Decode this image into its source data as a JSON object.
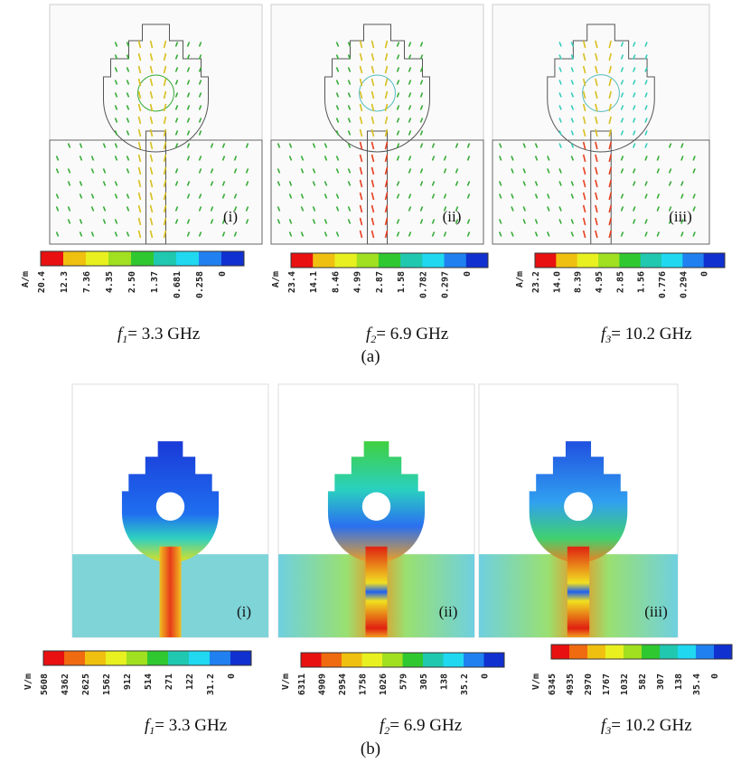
{
  "figure_a": {
    "caption": "(a)",
    "panels": [
      {
        "label": "(i)",
        "unit": "A/m",
        "ticks": [
          "20.4",
          "12.3",
          "7.36",
          "4.35",
          "2.50",
          "1.37",
          "0.681",
          "0.258",
          "0"
        ],
        "caption_var": "f",
        "caption_sub": "1",
        "caption_rest": "= 3.3 GHz"
      },
      {
        "label": "(ii)",
        "unit": "A/m",
        "ticks": [
          "23.4",
          "14.1",
          "8.46",
          "4.99",
          "2.87",
          "1.58",
          "0.782",
          "0.297",
          "0"
        ],
        "caption_var": "f",
        "caption_sub": "2",
        "caption_rest": "= 6.9 GHz"
      },
      {
        "label": "(iii)",
        "unit": "A/m",
        "ticks": [
          "23.2",
          "14.0",
          "8.39",
          "4.95",
          "2.85",
          "1.56",
          "0.776",
          "0.294",
          "0"
        ],
        "caption_var": "f",
        "caption_sub": "3",
        "caption_rest": "= 10.2 GHz"
      }
    ]
  },
  "figure_b": {
    "caption": "(b)",
    "panels": [
      {
        "label": "(i)",
        "unit": "V/m",
        "ticks": [
          "5608",
          "4362",
          "2625",
          "1562",
          "912",
          "514",
          "271",
          "122",
          "31.2",
          "0"
        ],
        "caption_var": "f",
        "caption_sub": "1",
        "caption_rest": "= 3.3 GHz"
      },
      {
        "label": "(ii)",
        "unit": "V/m",
        "ticks": [
          "6311",
          "4909",
          "2954",
          "1758",
          "1026",
          "579",
          "305",
          "138",
          "35.2",
          "0"
        ],
        "caption_var": "f",
        "caption_sub": "2",
        "caption_rest": "= 6.9 GHz"
      },
      {
        "label": "(iii)",
        "unit": "V/m",
        "ticks": [
          "6345",
          "4935",
          "2970",
          "1767",
          "1032",
          "582",
          "307",
          "138",
          "35.4",
          "0"
        ],
        "caption_var": "f",
        "caption_sub": "3",
        "caption_rest": "= 10.2 GHz"
      }
    ]
  }
}
